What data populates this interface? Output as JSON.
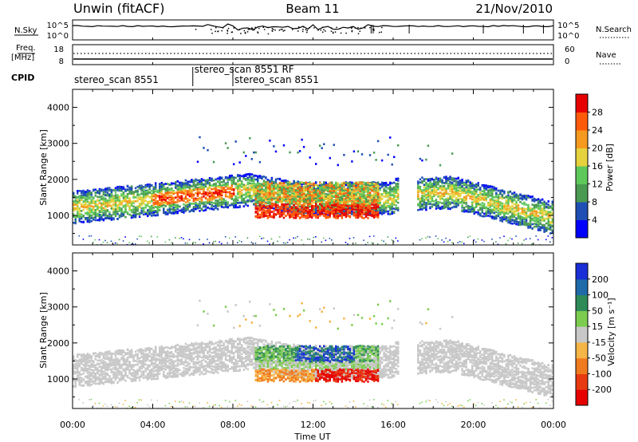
{
  "header": {
    "station": "Unwin (fitACF)",
    "beam": "Beam 11",
    "date": "21/Nov/2010"
  },
  "panels": {
    "nsky_label": "N.Sky",
    "nsearch_label": "N.Search",
    "freq_label": "Freq.",
    "freq_unit": "[MHz]",
    "nave_label": "Nave",
    "cpid_label": "CPID",
    "nsky_ticks": [
      "10^5",
      "10^0"
    ],
    "nsearch_ticks": [
      "10^5",
      "10^0"
    ],
    "freq_ticks": [
      "18",
      "8"
    ],
    "nave_ticks": [
      "60",
      "0"
    ]
  },
  "cpid": [
    {
      "label": "stereo_scan 8551",
      "start_hour": 0.0
    },
    {
      "label": "stereo_scan 8551 RF",
      "start_hour": 6.0
    },
    {
      "label": "stereo_scan 8551",
      "start_hour": 8.0
    }
  ],
  "chart_data": [
    {
      "type": "heatmap",
      "title": "Power",
      "ylabel": "Slant Range [km]",
      "xlabel": "Time UT",
      "x_ticks": [
        "00:00",
        "04:00",
        "08:00",
        "12:00",
        "16:00",
        "20:00",
        "00:00"
      ],
      "x_range_hours": [
        0,
        24
      ],
      "y_range_km": [
        180,
        4500
      ],
      "y_ticks": [
        "1000",
        "2000",
        "3000",
        "4000"
      ],
      "colorbar_label": "Power [dB]",
      "colorbar_ticks": [
        "4",
        "8",
        "12",
        "16",
        "20",
        "24",
        "28"
      ],
      "colorbar_range": [
        0,
        30
      ],
      "colors": [
        "#0000ff",
        "#1f4fb4",
        "#4a9a52",
        "#5fc85a",
        "#e6d23c",
        "#f59a1e",
        "#ff5a0a",
        "#e60000"
      ]
    },
    {
      "type": "heatmap",
      "title": "Velocity",
      "ylabel": "Slant Range [km]",
      "xlabel": "Time UT",
      "x_ticks": [
        "00:00",
        "04:00",
        "08:00",
        "12:00",
        "16:00",
        "20:00",
        "00:00"
      ],
      "x_range_hours": [
        0,
        24
      ],
      "y_range_km": [
        180,
        4500
      ],
      "y_ticks": [
        "1000",
        "2000",
        "3000",
        "4000"
      ],
      "colorbar_label": "Velocity [m s⁻¹]",
      "colorbar_ticks": [
        "200",
        "100",
        "50",
        "15",
        "-15",
        "-50",
        "-100",
        "-200"
      ],
      "colorbar_range": [
        -250,
        250
      ],
      "colors": [
        "#1a2fd6",
        "#1f6aa8",
        "#2e8b57",
        "#7ccd4f",
        "#c8c8c8",
        "#f5b547",
        "#f07a1e",
        "#e83a10",
        "#e60000"
      ]
    }
  ]
}
